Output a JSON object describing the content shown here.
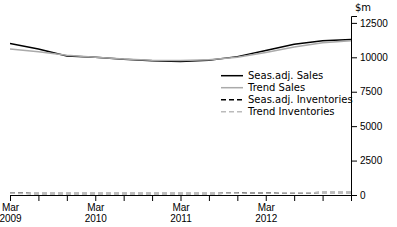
{
  "chart_data": {
    "type": "line",
    "ylabel": "$m",
    "categories": [
      "Mar\n2009",
      null,
      null,
      "Mar\n2010",
      null,
      null,
      "Mar\n2011",
      null,
      null,
      "Mar\n2012",
      null,
      null,
      null
    ],
    "ylim": [
      0,
      13000
    ],
    "yticks": [
      0,
      2500,
      5000,
      7500,
      10000,
      12500
    ],
    "grid": false,
    "legend": "upper right",
    "series": [
      {
        "name": "Seas.adj. Sales",
        "color": "#000000",
        "line_style": "solid",
        "values": [
          11000,
          10600,
          10100,
          10000,
          9850,
          9750,
          9700,
          9780,
          10050,
          10500,
          10950,
          11200,
          11300
        ]
      },
      {
        "name": "Trend Sales",
        "color": "#aaaaaa",
        "line_style": "solid",
        "values": [
          10600,
          10400,
          10150,
          10000,
          9880,
          9790,
          9760,
          9820,
          10000,
          10350,
          10750,
          11050,
          11200
        ]
      },
      {
        "name": "Seas.adj. Inventories",
        "color": "#000000",
        "line_style": "dashed",
        "values": [
          130,
          110,
          115,
          105,
          105,
          110,
          105,
          110,
          135,
          155,
          165,
          175,
          180
        ]
      },
      {
        "name": "Trend Inventories",
        "color": "#bbbbbb",
        "line_style": "dashed",
        "values": [
          120,
          112,
          108,
          105,
          104,
          105,
          107,
          112,
          130,
          150,
          163,
          172,
          178
        ]
      }
    ]
  }
}
